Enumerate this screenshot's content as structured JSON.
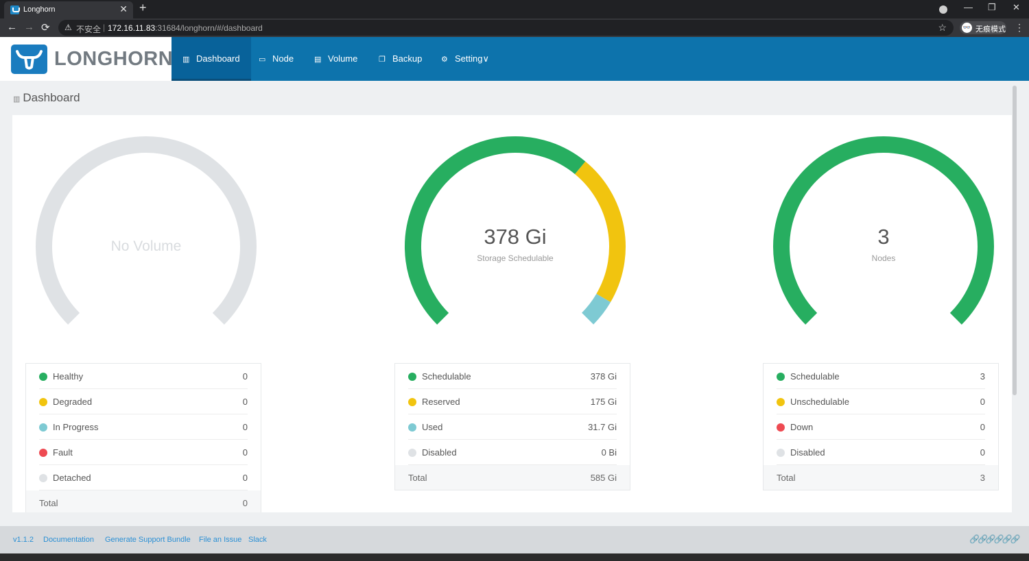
{
  "browser": {
    "tab_title": "Longhorn",
    "tab_close": "✕",
    "new_tab": "+",
    "minimize": "—",
    "restore": "❐",
    "close": "✕",
    "back": "←",
    "forward": "→",
    "reload": "⟳",
    "insecure_label": "不安全",
    "url_host": "172.16.11.83",
    "url_rest": ":31684/longhorn/#/dashboard",
    "incognito_label": "无痕模式",
    "menu": "⋮",
    "bookmark": "☆"
  },
  "header": {
    "logo_text": "LONGHORN",
    "nav": [
      {
        "label": "Dashboard",
        "icon": "bar-chart-icon",
        "glyph": "▥",
        "active": true
      },
      {
        "label": "Node",
        "icon": "monitor-icon",
        "glyph": "▭"
      },
      {
        "label": "Volume",
        "icon": "database-icon",
        "glyph": "▤"
      },
      {
        "label": "Backup",
        "icon": "copy-icon",
        "glyph": "❐"
      },
      {
        "label": "Setting",
        "icon": "gear-icon",
        "glyph": "⚙",
        "caret": "∨"
      }
    ]
  },
  "page": {
    "title": "Dashboard",
    "title_glyph": "▥"
  },
  "colors": {
    "green": "#27ae60",
    "yellow": "#f1c40f",
    "teal": "#7ecad3",
    "red": "#ee4a52",
    "grey": "#dfe2e5",
    "accent": "#0d73ac"
  },
  "volume": {
    "empty_text": "No Volume",
    "rows": [
      {
        "label": "Healthy",
        "value": "0",
        "color": "#27ae60"
      },
      {
        "label": "Degraded",
        "value": "0",
        "color": "#f1c40f"
      },
      {
        "label": "In Progress",
        "value": "0",
        "color": "#7ecad3"
      },
      {
        "label": "Fault",
        "value": "0",
        "color": "#ee4a52"
      },
      {
        "label": "Detached",
        "value": "0",
        "color": "#dfe2e5"
      }
    ],
    "total_label": "Total",
    "total_value": "0"
  },
  "storage": {
    "big": "378 Gi",
    "small": "Storage Schedulable",
    "gauge_fractions": {
      "schedulable": 0.6462,
      "reserved": 0.2991,
      "used": 0.0542
    },
    "rows": [
      {
        "label": "Schedulable",
        "value": "378 Gi",
        "color": "#27ae60"
      },
      {
        "label": "Reserved",
        "value": "175 Gi",
        "color": "#f1c40f"
      },
      {
        "label": "Used",
        "value": "31.7 Gi",
        "color": "#7ecad3"
      },
      {
        "label": "Disabled",
        "value": "0 Bi",
        "color": "#dfe2e5"
      }
    ],
    "total_label": "Total",
    "total_value": "585 Gi"
  },
  "nodes": {
    "big": "3",
    "small": "Nodes",
    "gauge_fractions": {
      "schedulable": 1.0
    },
    "rows": [
      {
        "label": "Schedulable",
        "value": "3",
        "color": "#27ae60"
      },
      {
        "label": "Unschedulable",
        "value": "0",
        "color": "#f1c40f"
      },
      {
        "label": "Down",
        "value": "0",
        "color": "#ee4a52"
      },
      {
        "label": "Disabled",
        "value": "0",
        "color": "#dfe2e5"
      }
    ],
    "total_label": "Total",
    "total_value": "3"
  },
  "footer": {
    "links": [
      "v1.1.2",
      "Documentation",
      "Generate Support Bundle",
      "File an Issue",
      "Slack"
    ],
    "status_glyphs": "🔗🔗🔗🔗🔗🔗"
  }
}
